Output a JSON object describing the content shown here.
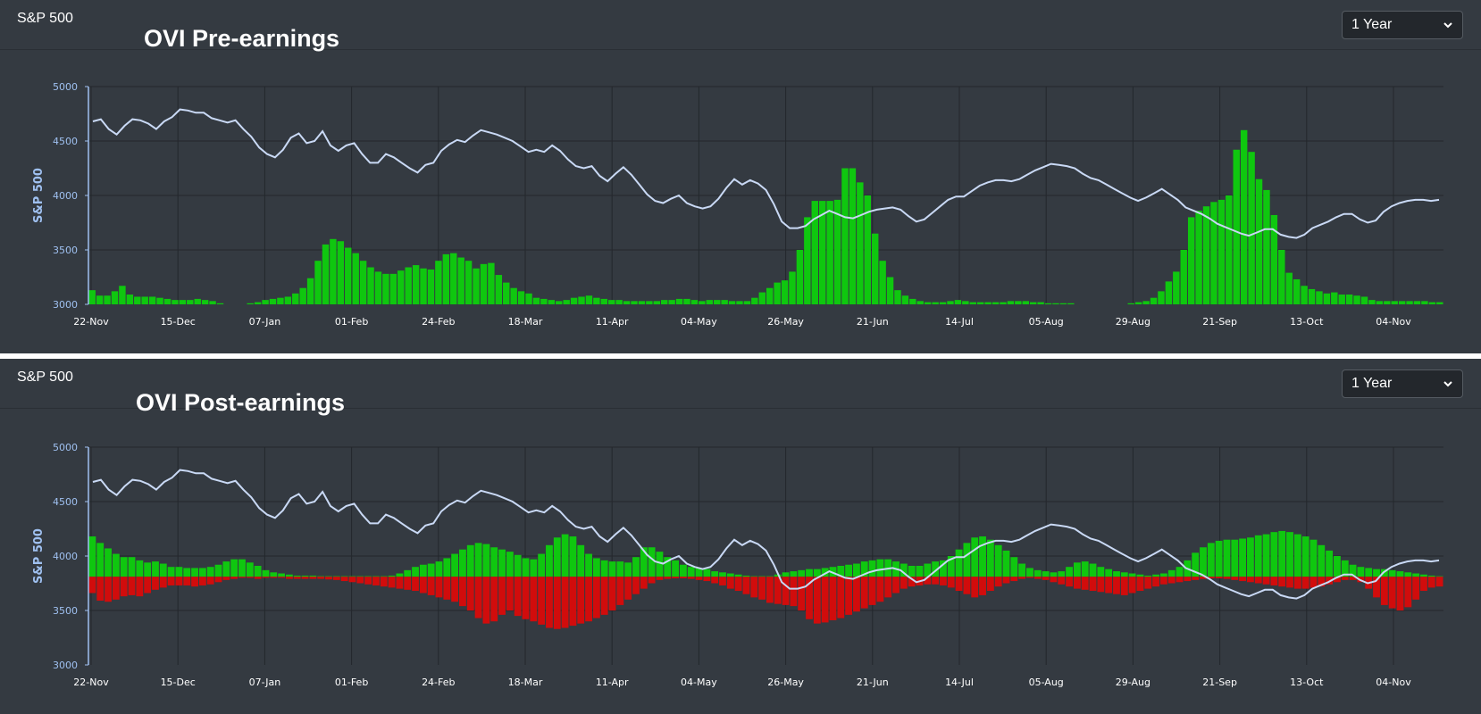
{
  "colors": {
    "bg": "#343a41",
    "grid": "#23272c",
    "axis": "#9fc0f0",
    "line": "#c9d9f5",
    "green": "#0fc70f",
    "red": "#d10c0c"
  },
  "panels": [
    {
      "label": "S&P 500",
      "dropdown": {
        "selected": "1 Year",
        "icon": "chevron-down-icon"
      },
      "chart_data": {
        "type": "bar+line",
        "title": "OVI Pre-earnings",
        "ylabel": "S&P 500",
        "ylim": [
          3000,
          5000
        ],
        "yticks": [
          3000,
          3500,
          4000,
          4500,
          5000
        ],
        "x_labels": [
          "22-Nov",
          "15-Dec",
          "07-Jan",
          "01-Feb",
          "24-Feb",
          "18-Mar",
          "11-Apr",
          "04-May",
          "26-May",
          "21-Jun",
          "14-Jul",
          "05-Aug",
          "29-Aug",
          "21-Sep",
          "13-Oct",
          "04-Nov"
        ],
        "line": {
          "name": "S&P 500",
          "values": [
            4680,
            4700,
            4610,
            4560,
            4640,
            4700,
            4690,
            4660,
            4610,
            4680,
            4720,
            4790,
            4780,
            4760,
            4760,
            4710,
            4690,
            4670,
            4690,
            4610,
            4540,
            4440,
            4380,
            4350,
            4420,
            4530,
            4570,
            4480,
            4500,
            4590,
            4460,
            4410,
            4460,
            4480,
            4380,
            4300,
            4300,
            4380,
            4350,
            4300,
            4250,
            4210,
            4280,
            4300,
            4410,
            4470,
            4510,
            4490,
            4550,
            4600,
            4580,
            4560,
            4530,
            4500,
            4450,
            4400,
            4420,
            4400,
            4460,
            4410,
            4330,
            4270,
            4250,
            4270,
            4180,
            4130,
            4200,
            4260,
            4190,
            4100,
            4010,
            3950,
            3930,
            3970,
            4000,
            3930,
            3900,
            3880,
            3900,
            3970,
            4070,
            4150,
            4100,
            4140,
            4110,
            4050,
            3920,
            3760,
            3700,
            3700,
            3720,
            3780,
            3820,
            3860,
            3830,
            3800,
            3790,
            3820,
            3850,
            3870,
            3880,
            3890,
            3870,
            3810,
            3760,
            3780,
            3840,
            3900,
            3960,
            3990,
            3990,
            4040,
            4090,
            4120,
            4140,
            4140,
            4130,
            4150,
            4190,
            4230,
            4260,
            4290,
            4280,
            4270,
            4250,
            4200,
            4160,
            4140,
            4100,
            4060,
            4020,
            3980,
            3950,
            3980,
            4020,
            4060,
            4010,
            3960,
            3890,
            3860,
            3830,
            3790,
            3740,
            3710,
            3680,
            3650,
            3630,
            3660,
            3690,
            3690,
            3640,
            3620,
            3610,
            3640,
            3700,
            3730,
            3760,
            3800,
            3830,
            3830,
            3780,
            3750,
            3770,
            3850,
            3900,
            3930,
            3950,
            3960,
            3960,
            3950,
            3960
          ]
        },
        "bars": {
          "name": "OVI",
          "values": [
            3130,
            3080,
            3080,
            3120,
            3170,
            3090,
            3070,
            3070,
            3070,
            3060,
            3050,
            3040,
            3040,
            3040,
            3050,
            3040,
            3030,
            3010,
            3000,
            3000,
            3000,
            3010,
            3020,
            3040,
            3050,
            3060,
            3070,
            3100,
            3150,
            3240,
            3400,
            3550,
            3600,
            3580,
            3520,
            3470,
            3400,
            3340,
            3300,
            3280,
            3280,
            3310,
            3340,
            3360,
            3330,
            3320,
            3400,
            3460,
            3470,
            3430,
            3400,
            3330,
            3370,
            3380,
            3270,
            3200,
            3150,
            3120,
            3100,
            3060,
            3050,
            3040,
            3030,
            3040,
            3060,
            3070,
            3080,
            3060,
            3050,
            3040,
            3040,
            3030,
            3030,
            3030,
            3030,
            3030,
            3040,
            3040,
            3050,
            3050,
            3040,
            3030,
            3040,
            3040,
            3040,
            3030,
            3030,
            3030,
            3060,
            3110,
            3150,
            3200,
            3220,
            3300,
            3500,
            3800,
            3950,
            3950,
            3950,
            3960,
            4250,
            4250,
            4120,
            4000,
            3650,
            3400,
            3250,
            3130,
            3080,
            3050,
            3030,
            3020,
            3020,
            3020,
            3030,
            3040,
            3030,
            3020,
            3020,
            3020,
            3020,
            3020,
            3030,
            3030,
            3030,
            3020,
            3020,
            3010,
            3010,
            3010,
            3010,
            3000,
            3000,
            3000,
            3000,
            3000,
            3000,
            3000,
            3010,
            3020,
            3030,
            3060,
            3120,
            3210,
            3300,
            3500,
            3800,
            3860,
            3900,
            3940,
            3960,
            4000,
            4420,
            4600,
            4400,
            4150,
            4050,
            3820,
            3500,
            3290,
            3230,
            3170,
            3140,
            3120,
            3100,
            3110,
            3090,
            3090,
            3080,
            3070,
            3040,
            3030,
            3030,
            3030,
            3030,
            3030,
            3030,
            3030,
            3020,
            3020
          ]
        }
      }
    },
    {
      "label": "S&P 500",
      "dropdown": {
        "selected": "1 Year",
        "icon": "chevron-down-icon"
      },
      "chart_data": {
        "type": "bar+line",
        "title": "OVI Post-earnings",
        "ylabel": "S&P 500",
        "ylim": [
          3000,
          5000
        ],
        "yticks": [
          3000,
          3500,
          4000,
          4500,
          5000
        ],
        "baseline": 3810,
        "x_labels": [
          "22-Nov",
          "15-Dec",
          "07-Jan",
          "01-Feb",
          "24-Feb",
          "18-Mar",
          "11-Apr",
          "04-May",
          "26-May",
          "21-Jun",
          "14-Jul",
          "05-Aug",
          "29-Aug",
          "21-Sep",
          "13-Oct",
          "04-Nov"
        ],
        "line": {
          "name": "S&P 500",
          "values": [
            4680,
            4700,
            4610,
            4560,
            4640,
            4700,
            4690,
            4660,
            4610,
            4680,
            4720,
            4790,
            4780,
            4760,
            4760,
            4710,
            4690,
            4670,
            4690,
            4610,
            4540,
            4440,
            4380,
            4350,
            4420,
            4530,
            4570,
            4480,
            4500,
            4590,
            4460,
            4410,
            4460,
            4480,
            4380,
            4300,
            4300,
            4380,
            4350,
            4300,
            4250,
            4210,
            4280,
            4300,
            4410,
            4470,
            4510,
            4490,
            4550,
            4600,
            4580,
            4560,
            4530,
            4500,
            4450,
            4400,
            4420,
            4400,
            4460,
            4410,
            4330,
            4270,
            4250,
            4270,
            4180,
            4130,
            4200,
            4260,
            4190,
            4100,
            4010,
            3950,
            3930,
            3970,
            4000,
            3930,
            3900,
            3880,
            3900,
            3970,
            4070,
            4150,
            4100,
            4140,
            4110,
            4050,
            3920,
            3760,
            3700,
            3700,
            3720,
            3780,
            3820,
            3860,
            3830,
            3800,
            3790,
            3820,
            3850,
            3870,
            3880,
            3890,
            3870,
            3810,
            3760,
            3780,
            3840,
            3900,
            3960,
            3990,
            3990,
            4040,
            4090,
            4120,
            4140,
            4140,
            4130,
            4150,
            4190,
            4230,
            4260,
            4290,
            4280,
            4270,
            4250,
            4200,
            4160,
            4140,
            4100,
            4060,
            4020,
            3980,
            3950,
            3980,
            4020,
            4060,
            4010,
            3960,
            3890,
            3860,
            3830,
            3790,
            3740,
            3710,
            3680,
            3650,
            3630,
            3660,
            3690,
            3690,
            3640,
            3620,
            3610,
            3640,
            3700,
            3730,
            3760,
            3800,
            3830,
            3830,
            3780,
            3750,
            3770,
            3850,
            3900,
            3930,
            3950,
            3960,
            3960,
            3950,
            3960
          ]
        },
        "bars_positive": {
          "name": "OVI positive",
          "values": [
            4180,
            4120,
            4070,
            4020,
            3990,
            3990,
            3960,
            3940,
            3950,
            3930,
            3900,
            3900,
            3890,
            3890,
            3890,
            3900,
            3920,
            3950,
            3970,
            3970,
            3940,
            3910,
            3870,
            3850,
            3840,
            3830,
            3820,
            3820,
            3820,
            3815,
            3815,
            3815,
            3815,
            3815,
            3815,
            3815,
            3815,
            3815,
            3820,
            3840,
            3870,
            3900,
            3920,
            3930,
            3950,
            3980,
            4020,
            4060,
            4100,
            4120,
            4110,
            4080,
            4060,
            4040,
            4010,
            3980,
            3970,
            4020,
            4100,
            4170,
            4200,
            4180,
            4100,
            4020,
            3980,
            3960,
            3950,
            3950,
            3940,
            3990,
            4080,
            4080,
            4040,
            3990,
            3960,
            3920,
            3900,
            3890,
            3880,
            3860,
            3850,
            3840,
            3830,
            3820,
            3815,
            3815,
            3815,
            3830,
            3850,
            3860,
            3870,
            3880,
            3880,
            3890,
            3900,
            3910,
            3920,
            3930,
            3950,
            3960,
            3970,
            3970,
            3950,
            3930,
            3910,
            3910,
            3930,
            3950,
            3960,
            4000,
            4060,
            4120,
            4170,
            4180,
            4150,
            4100,
            4050,
            3990,
            3930,
            3890,
            3870,
            3860,
            3850,
            3860,
            3900,
            3940,
            3950,
            3930,
            3900,
            3880,
            3860,
            3850,
            3840,
            3830,
            3820,
            3830,
            3840,
            3870,
            3900,
            3960,
            4030,
            4080,
            4120,
            4140,
            4150,
            4150,
            4160,
            4170,
            4190,
            4200,
            4220,
            4230,
            4220,
            4200,
            4180,
            4150,
            4100,
            4050,
            4000,
            3960,
            3920,
            3900,
            3890,
            3880,
            3880,
            3870,
            3860,
            3850,
            3840,
            3830,
            3820,
            3815
          ]
        },
        "bars_negative": {
          "name": "OVI negative",
          "values": [
            3660,
            3590,
            3580,
            3600,
            3630,
            3640,
            3630,
            3660,
            3690,
            3710,
            3730,
            3730,
            3730,
            3720,
            3730,
            3740,
            3760,
            3780,
            3790,
            3800,
            3800,
            3790,
            3800,
            3800,
            3800,
            3790,
            3790,
            3790,
            3790,
            3790,
            3785,
            3780,
            3770,
            3760,
            3750,
            3740,
            3730,
            3720,
            3710,
            3700,
            3690,
            3680,
            3660,
            3640,
            3620,
            3600,
            3580,
            3540,
            3500,
            3430,
            3380,
            3400,
            3460,
            3500,
            3450,
            3420,
            3400,
            3370,
            3340,
            3330,
            3340,
            3360,
            3380,
            3400,
            3430,
            3460,
            3500,
            3550,
            3600,
            3650,
            3700,
            3750,
            3780,
            3790,
            3795,
            3795,
            3790,
            3780,
            3770,
            3750,
            3730,
            3700,
            3680,
            3650,
            3620,
            3600,
            3570,
            3560,
            3550,
            3540,
            3500,
            3420,
            3380,
            3390,
            3410,
            3430,
            3460,
            3490,
            3520,
            3550,
            3580,
            3620,
            3660,
            3700,
            3720,
            3730,
            3740,
            3740,
            3730,
            3710,
            3680,
            3650,
            3620,
            3640,
            3680,
            3720,
            3750,
            3770,
            3790,
            3800,
            3790,
            3780,
            3760,
            3740,
            3720,
            3700,
            3690,
            3680,
            3670,
            3660,
            3650,
            3640,
            3660,
            3680,
            3700,
            3720,
            3740,
            3750,
            3760,
            3770,
            3780,
            3790,
            3795,
            3795,
            3790,
            3780,
            3770,
            3760,
            3750,
            3740,
            3730,
            3720,
            3710,
            3700,
            3700,
            3710,
            3720,
            3740,
            3760,
            3780,
            3780,
            3760,
            3700,
            3620,
            3550,
            3520,
            3500,
            3530,
            3600,
            3680,
            3710,
            3720
          ]
        }
      }
    }
  ]
}
